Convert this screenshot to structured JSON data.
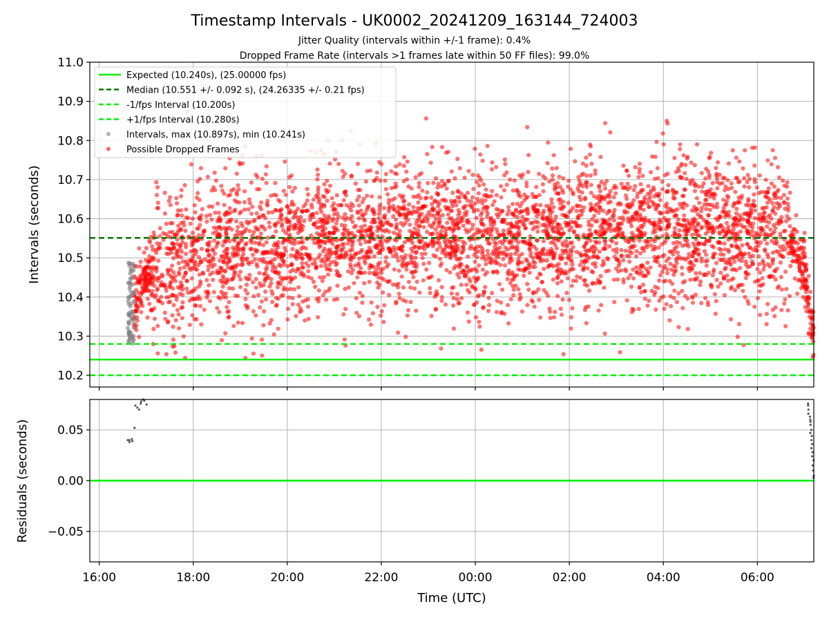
{
  "figure": {
    "title": "Timestamp Intervals - UK0002_20241209_163144_724003",
    "subtitle1": "Jitter Quality (intervals within +/-1 frame): 0.4%",
    "subtitle2": "Dropped Frame Rate (intervals >1 frames late within 50 FF files): 99.0%"
  },
  "colors": {
    "expected": "#00ee00",
    "median": "#007700",
    "fps_band": "#00ee00",
    "intervals": "#808080",
    "dropped": "#ff0000",
    "grid": "#b0b0b0"
  },
  "chart_data": [
    {
      "type": "scatter",
      "ylabel": "Intervals (seconds)",
      "ylim": [
        10.17,
        11.0
      ],
      "yticks": [
        "10.2",
        "10.3",
        "10.4",
        "10.5",
        "10.6",
        "10.7",
        "10.8",
        "10.9",
        "11.0"
      ],
      "xlim_hours": [
        15.8,
        31.2
      ],
      "grid": true,
      "legend_position": "top-left",
      "legend": [
        {
          "label": "Expected (10.240s), (25.00000 fps)",
          "style": "solid",
          "color": "#00ee00"
        },
        {
          "label": "Median (10.551 +/- 0.092 s), (24.26335 +/- 0.21 fps)",
          "style": "dashed",
          "color": "#007700"
        },
        {
          "label": "-1/fps Interval (10.200s)",
          "style": "dashed",
          "color": "#00ee00"
        },
        {
          "label": "+1/fps Interval (10.280s)",
          "style": "dashed",
          "color": "#00ee00"
        },
        {
          "label": "Intervals, max (10.897s), min (10.241s)",
          "style": "marker",
          "color": "#808080"
        },
        {
          "label": "Possible Dropped Frames",
          "style": "marker",
          "color": "#ff0000"
        }
      ],
      "reference_lines": {
        "expected": 10.24,
        "median": 10.551,
        "minus_fps": 10.2,
        "plus_fps": 10.28
      },
      "series": [
        {
          "name": "Possible Dropped Frames",
          "time_range": [
            "16:44",
            "07:12"
          ],
          "trend": [
            [
              "16:44",
              10.36
            ],
            [
              "17:00",
              10.46
            ],
            [
              "17:30",
              10.49
            ],
            [
              "18:00",
              10.52
            ],
            [
              "19:00",
              10.52
            ],
            [
              "20:00",
              10.52
            ],
            [
              "21:00",
              10.56
            ],
            [
              "22:00",
              10.55
            ],
            [
              "23:00",
              10.56
            ],
            [
              "00:00",
              10.55
            ],
            [
              "01:00",
              10.56
            ],
            [
              "02:00",
              10.56
            ],
            [
              "03:00",
              10.57
            ],
            [
              "04:00",
              10.57
            ],
            [
              "05:00",
              10.57
            ],
            [
              "06:00",
              10.56
            ],
            [
              "06:40",
              10.55
            ],
            [
              "07:00",
              10.47
            ],
            [
              "07:12",
              10.3
            ]
          ],
          "spread": 0.092,
          "max": 10.897,
          "min": 10.241
        },
        {
          "name": "Intervals",
          "time_range": [
            "16:36",
            "16:45"
          ],
          "range": [
            10.28,
            10.49
          ]
        }
      ]
    },
    {
      "type": "scatter",
      "ylabel": "Residuals (seconds)",
      "xlabel": "Time (UTC)",
      "ylim": [
        -0.08,
        0.08
      ],
      "yticks": [
        "−0.05",
        "0.00",
        "0.05"
      ],
      "xticks": [
        "16:00",
        "18:00",
        "20:00",
        "22:00",
        "00:00",
        "02:00",
        "04:00",
        "06:00"
      ],
      "grid": true,
      "reference_line": 0.0,
      "series": [
        {
          "name": "Residuals",
          "clusters": [
            {
              "time_range": [
                "16:36",
                "17:00"
              ],
              "values": [
                0.04,
                0.038,
                0.04,
                0.041,
                0.039,
                0.052,
                0.074,
                0.072,
                0.07,
                0.076,
                0.078,
                0.08,
                0.079,
                0.075
              ]
            },
            {
              "time_range": [
                "07:05",
                "07:12"
              ],
              "values": [
                0.076,
                0.074,
                0.07,
                0.066,
                0.063,
                0.06,
                0.058,
                0.055,
                0.05,
                0.047,
                0.044,
                0.04,
                0.036,
                0.032,
                0.028,
                0.024,
                0.02,
                0.015,
                0.01,
                0.005,
                0.003
              ]
            }
          ]
        }
      ]
    }
  ]
}
